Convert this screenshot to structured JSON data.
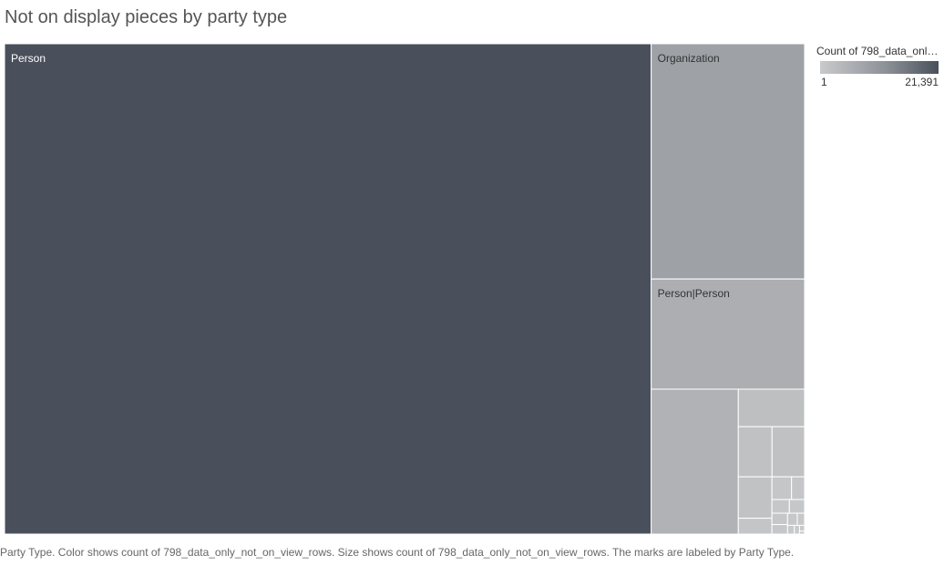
{
  "title": "Not on display pieces by party type",
  "legend": {
    "title": "Count of 798_data_only_not_on_view_rows",
    "min_label": "1",
    "max_label": "21,391",
    "color_low": "#c9cacb",
    "color_high": "#4a505b"
  },
  "caption": "Party Type.  Color shows count of 798_data_only_not_on_view_rows.  Size shows count of 798_data_only_not_on_view_rows.  The marks are labeled by Party Type.",
  "chart_data": {
    "type": "treemap",
    "title": "Not on display pieces by party type",
    "size_measure": "Count of 798_data_only_not_on_view_rows",
    "color_measure": "Count of 798_data_only_not_on_view_rows",
    "color_range": [
      1,
      21391
    ],
    "items": [
      {
        "label": "Person",
        "value": 21391
      },
      {
        "label": "Organization",
        "value": 2435
      },
      {
        "label": "Person|Person",
        "value": 1140
      },
      {
        "label": "",
        "value": 852
      },
      {
        "label": "",
        "value": 168
      },
      {
        "label": "",
        "value": 114
      },
      {
        "label": "",
        "value": 110
      },
      {
        "label": "",
        "value": 94
      },
      {
        "label": "",
        "value": 36
      },
      {
        "label": "",
        "value": 30
      },
      {
        "label": "",
        "value": 20
      },
      {
        "label": "",
        "value": 16
      },
      {
        "label": "",
        "value": 14
      },
      {
        "label": "",
        "value": 12
      },
      {
        "label": "",
        "value": 10
      },
      {
        "label": "",
        "value": 8
      },
      {
        "label": "",
        "value": 6
      },
      {
        "label": "",
        "value": 4
      },
      {
        "label": "",
        "value": 3
      },
      {
        "label": "",
        "value": 2
      },
      {
        "label": "",
        "value": 1
      }
    ]
  }
}
